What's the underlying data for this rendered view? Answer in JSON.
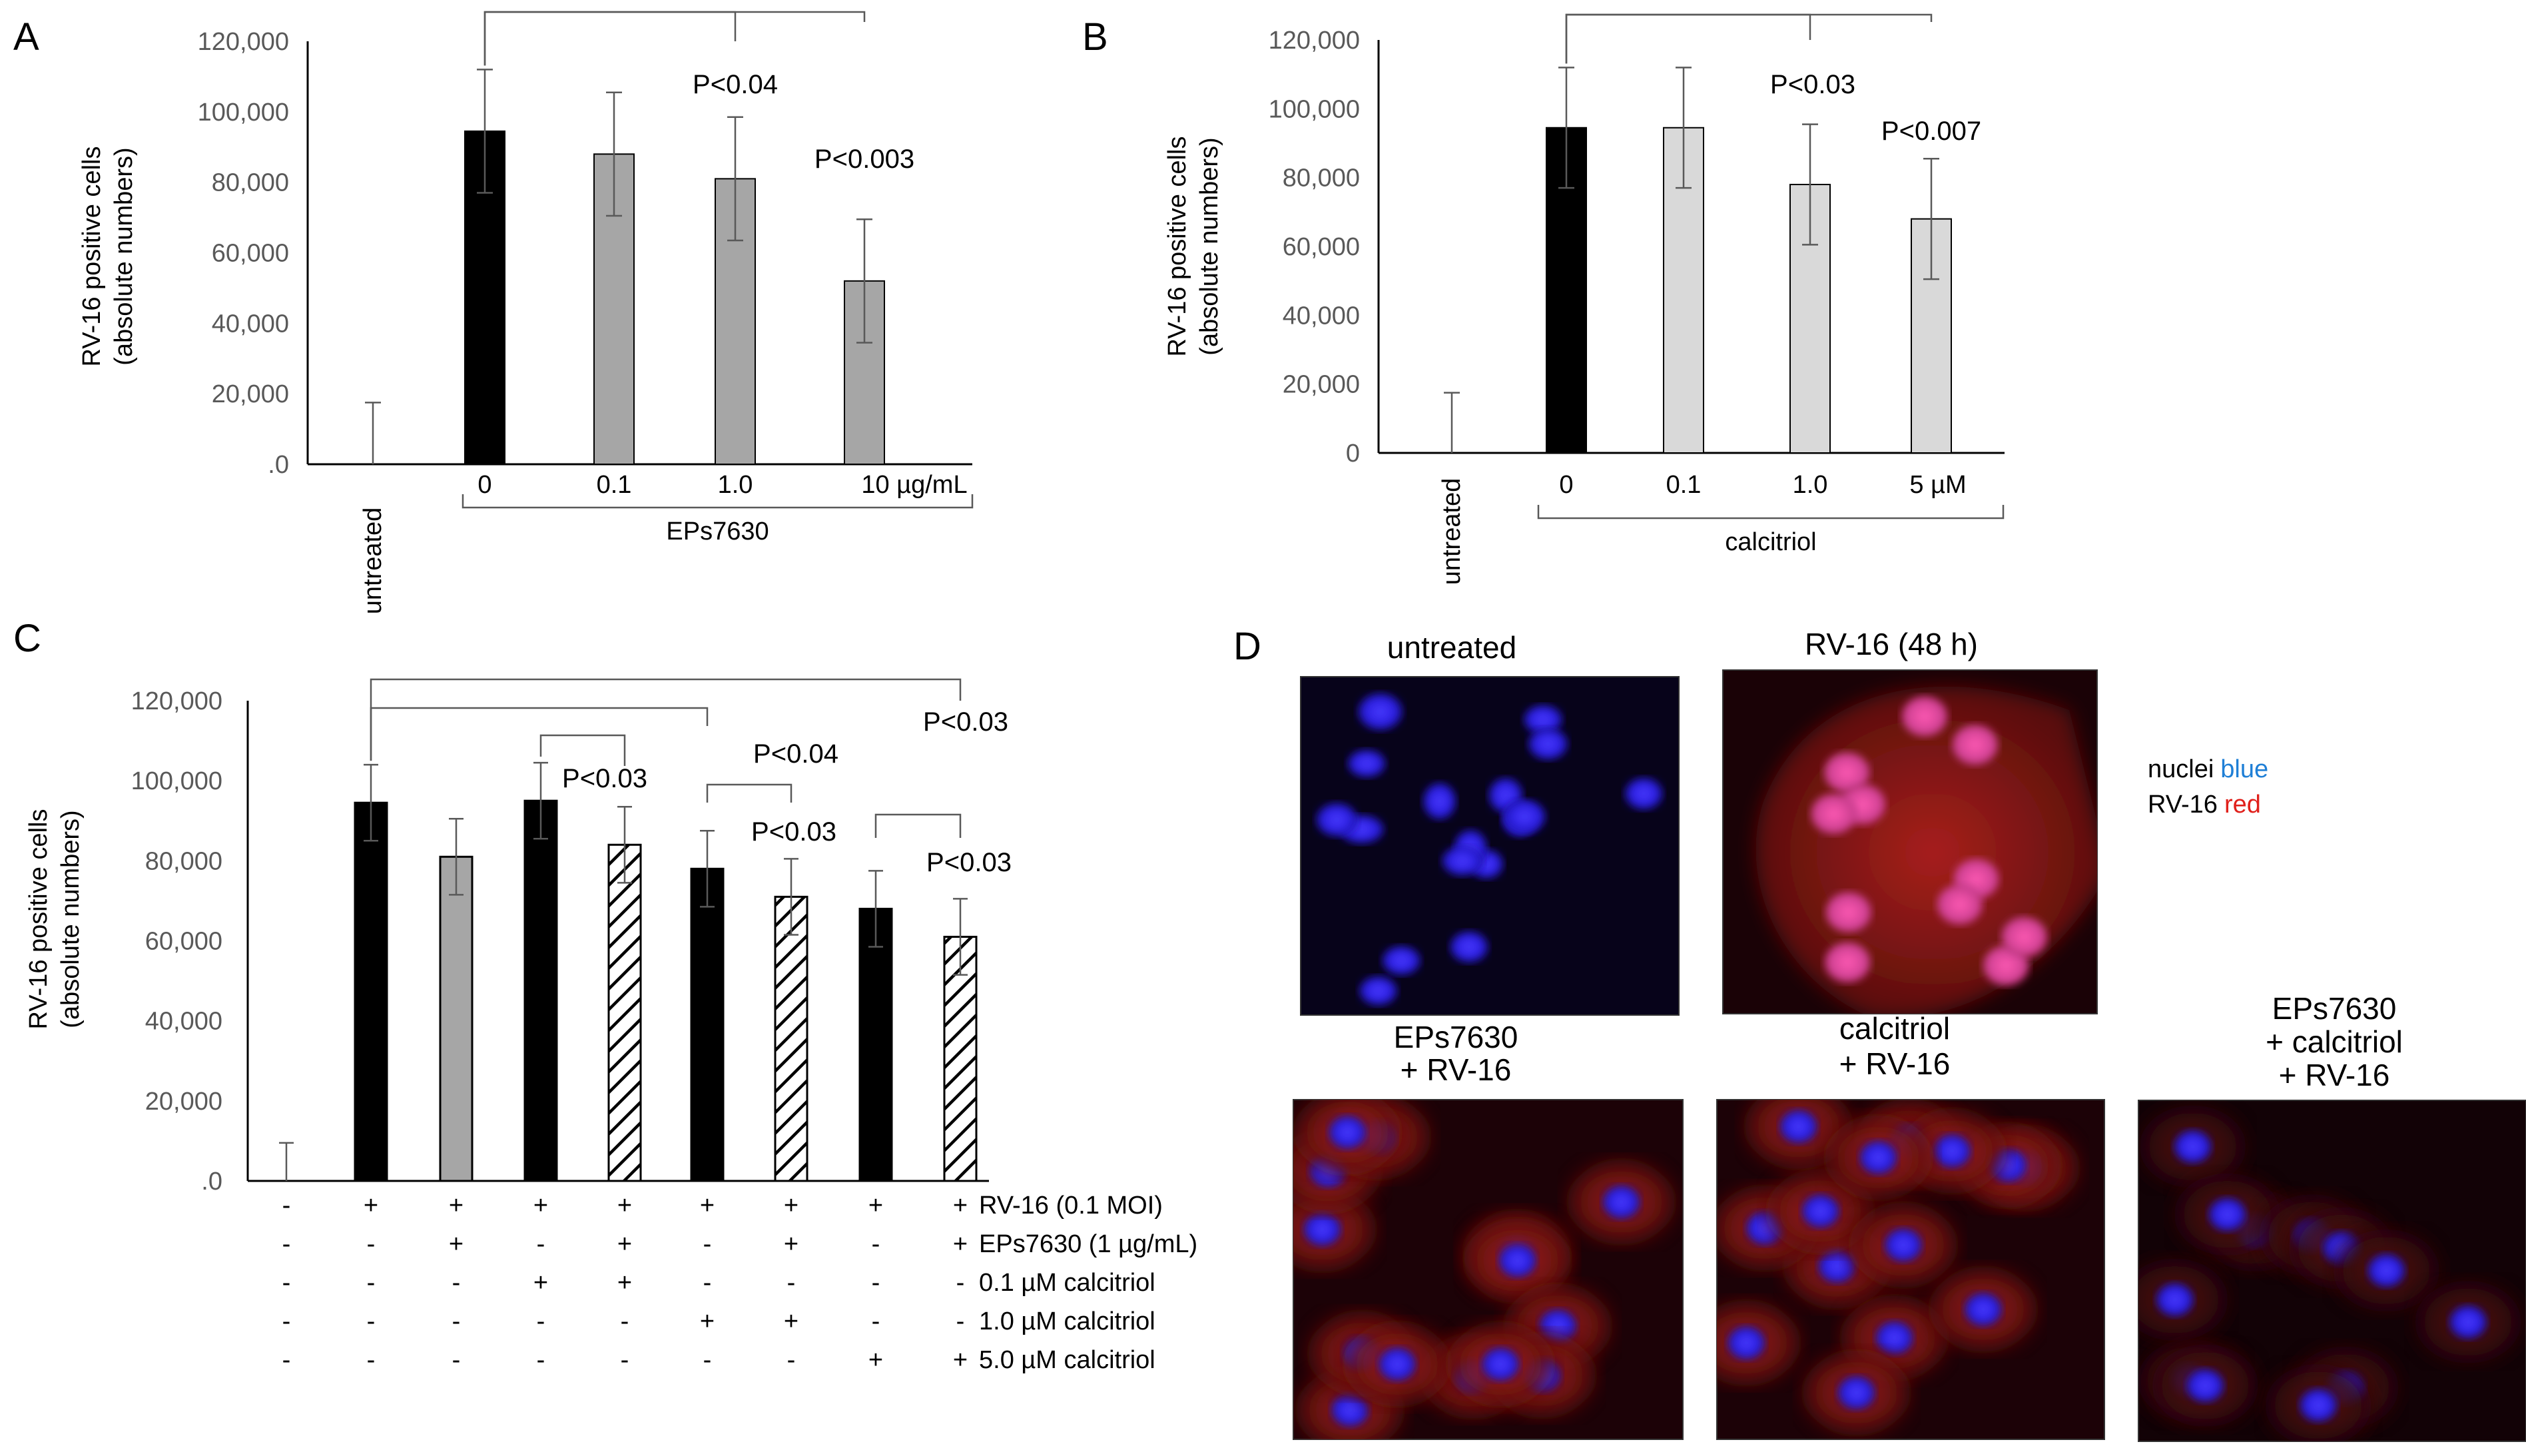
{
  "colors": {
    "black_bar": "#000000",
    "eps_bar": "#a6a6a6",
    "calcitriol_bar": "#d9d9d9",
    "axis": "#000000",
    "tick_text": "#595959",
    "bracket": "#595959",
    "nuclei_blue": "#1f7fd6",
    "rv_red": "#e0201b"
  },
  "chart_data": [
    {
      "panel": "A",
      "type": "bar",
      "ylabel": [
        "RV-16 positive cells",
        "(absolute numbers)"
      ],
      "ylim": [
        0,
        120000
      ],
      "yticks": [
        ".0",
        "20,000",
        "40,000",
        "60,000",
        "80,000",
        "100,000",
        "120,000"
      ],
      "categories": [
        "untreated",
        "0",
        "0.1",
        "1.0",
        "10 µg/mL"
      ],
      "group_label": "EPs7630",
      "values": [
        0,
        94500,
        88000,
        81000,
        52000
      ],
      "errors": [
        17500,
        17500,
        17500,
        17500,
        17500
      ],
      "bar_colors": [
        "none",
        "black",
        "eps",
        "eps",
        "eps"
      ],
      "significance": [
        {
          "from": 1,
          "to": 3,
          "label": "P<0.04"
        },
        {
          "from": 1,
          "to": 4,
          "label": "P<0.003"
        }
      ]
    },
    {
      "panel": "B",
      "type": "bar",
      "ylabel": [
        "RV-16 positive cells",
        "(absolute numbers)"
      ],
      "ylim": [
        0,
        120000
      ],
      "yticks": [
        "0",
        "20,000",
        "40,000",
        "60,000",
        "80,000",
        "100,000",
        "120,000"
      ],
      "categories": [
        "untreated",
        "0",
        "0.1",
        "1.0",
        "5 µM"
      ],
      "group_label": "calcitriol",
      "values": [
        0,
        94500,
        94500,
        78000,
        68000
      ],
      "errors": [
        17500,
        17500,
        17500,
        17500,
        17500
      ],
      "bar_colors": [
        "none",
        "black",
        "calc",
        "calc",
        "calc"
      ],
      "significance": [
        {
          "from": 1,
          "to": 3,
          "label": "P<0.03"
        },
        {
          "from": 1,
          "to": 4,
          "label": "P<0.007"
        }
      ]
    },
    {
      "panel": "C",
      "type": "bar",
      "ylabel": [
        "RV-16 positive cells",
        "(absolute numbers)"
      ],
      "ylim": [
        0,
        120000
      ],
      "yticks": [
        ".0",
        "20,000",
        "40,000",
        "60,000",
        "80,000",
        "100,000",
        "120,000"
      ],
      "values": [
        0,
        94500,
        81000,
        95000,
        84000,
        78000,
        71000,
        68000,
        61000
      ],
      "errors": [
        9500,
        9500,
        9500,
        9500,
        9500,
        9500,
        9500,
        9500,
        9500
      ],
      "bar_styles": [
        "none",
        "black",
        "eps",
        "black",
        "hatch",
        "black",
        "hatch",
        "black",
        "hatch"
      ],
      "condition_rows": [
        {
          "label": "RV-16 (0.1 MOI)",
          "marks": [
            "-",
            "+",
            "+",
            "+",
            "+",
            "+",
            "+",
            "+",
            "+"
          ]
        },
        {
          "label": "EPs7630 (1 µg/mL)",
          "marks": [
            "-",
            "-",
            "+",
            "-",
            "+",
            "-",
            "+",
            "-",
            "+"
          ]
        },
        {
          "label": "0.1 µM calcitriol",
          "marks": [
            "-",
            "-",
            "-",
            "+",
            "+",
            "-",
            "-",
            "-",
            "-"
          ]
        },
        {
          "label": "1.0 µM calcitriol",
          "marks": [
            "-",
            "-",
            "-",
            "-",
            "-",
            "+",
            "+",
            "-",
            "-"
          ]
        },
        {
          "label": "5.0 µM calcitriol",
          "marks": [
            "-",
            "-",
            "-",
            "-",
            "-",
            "-",
            "-",
            "+",
            "+"
          ]
        }
      ],
      "significance": [
        {
          "from": 1,
          "to": 8,
          "label": "P<0.03"
        },
        {
          "from": 1,
          "to": 5,
          "label": "P<0.04"
        },
        {
          "from": 3,
          "to": 4,
          "label": "P<0.03"
        },
        {
          "from": 5,
          "to": 6,
          "label": "P<0.03"
        },
        {
          "from": 7,
          "to": 8,
          "label": "P<0.03"
        }
      ]
    }
  ],
  "panel_d": {
    "letter": "D",
    "images": [
      {
        "title": [
          "untreated"
        ],
        "tint": "blue"
      },
      {
        "title": [
          "RV-16 (48 h)"
        ],
        "tint": "red-strong"
      },
      {
        "title": [
          "EPs7630",
          "+ RV-16"
        ],
        "tint": "red-mid"
      },
      {
        "title": [
          "calcitriol",
          "+ RV-16"
        ],
        "tint": "red-mid"
      },
      {
        "title": [
          "EPs7630",
          "+ calcitriol",
          "+ RV-16"
        ],
        "tint": "red-weak"
      }
    ],
    "legend": {
      "line1_prefix": "nuclei",
      "line1_color_word": "blue",
      "line2_prefix": "RV-16",
      "line2_color_word": "red"
    }
  }
}
